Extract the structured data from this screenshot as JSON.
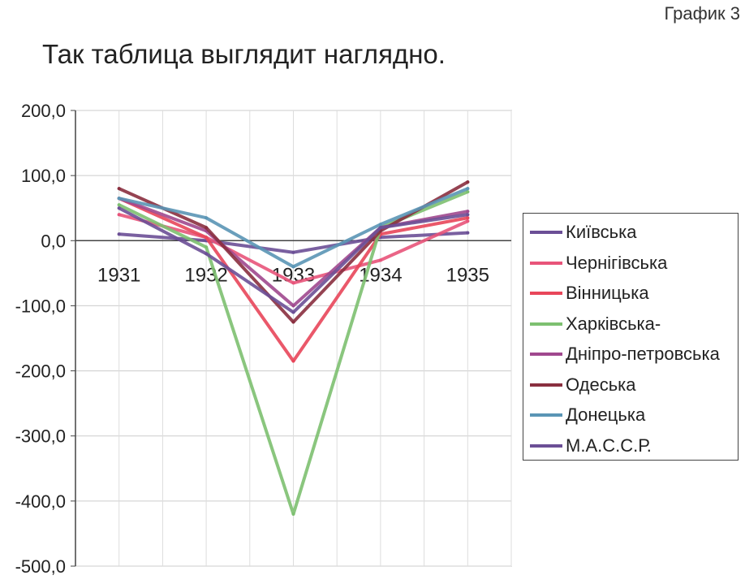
{
  "page": {
    "graph_label": "График 3",
    "heading": "Так таблица выглядит наглядно."
  },
  "chart_data": {
    "type": "line",
    "categories": [
      "1931",
      "1932",
      "1933",
      "1934",
      "1935"
    ],
    "ylim": [
      -500,
      200
    ],
    "y_ticks": [
      "200,0",
      "100,0",
      "0,0",
      "-100,0",
      "-200,0",
      "-300,0",
      "-400,0",
      "-500,0"
    ],
    "grid": true,
    "legend_position": "right",
    "series": [
      {
        "name": "Київська",
        "color": "#6b4f96",
        "values": [
          10,
          0,
          -18,
          5,
          12
        ]
      },
      {
        "name": "Чернігівська",
        "color": "#e8547a",
        "values": [
          40,
          5,
          -65,
          -30,
          30
        ]
      },
      {
        "name": "Вінницька",
        "color": "#e8465a",
        "values": [
          65,
          5,
          -185,
          10,
          35
        ]
      },
      {
        "name": "Харківська-",
        "color": "#7dc070",
        "values": [
          55,
          -10,
          -420,
          20,
          75
        ]
      },
      {
        "name": "Дніпро-петровська",
        "color": "#a0488e",
        "values": [
          65,
          15,
          -100,
          20,
          45
        ]
      },
      {
        "name": "Одеська",
        "color": "#8a2f3f",
        "values": [
          80,
          20,
          -125,
          15,
          90
        ]
      },
      {
        "name": "Донецька",
        "color": "#5a95b5",
        "values": [
          65,
          35,
          -40,
          25,
          80
        ]
      },
      {
        "name": "М.А.С.С.Р.",
        "color": "#6b4f96",
        "values": [
          50,
          -20,
          -110,
          20,
          40
        ]
      }
    ]
  }
}
